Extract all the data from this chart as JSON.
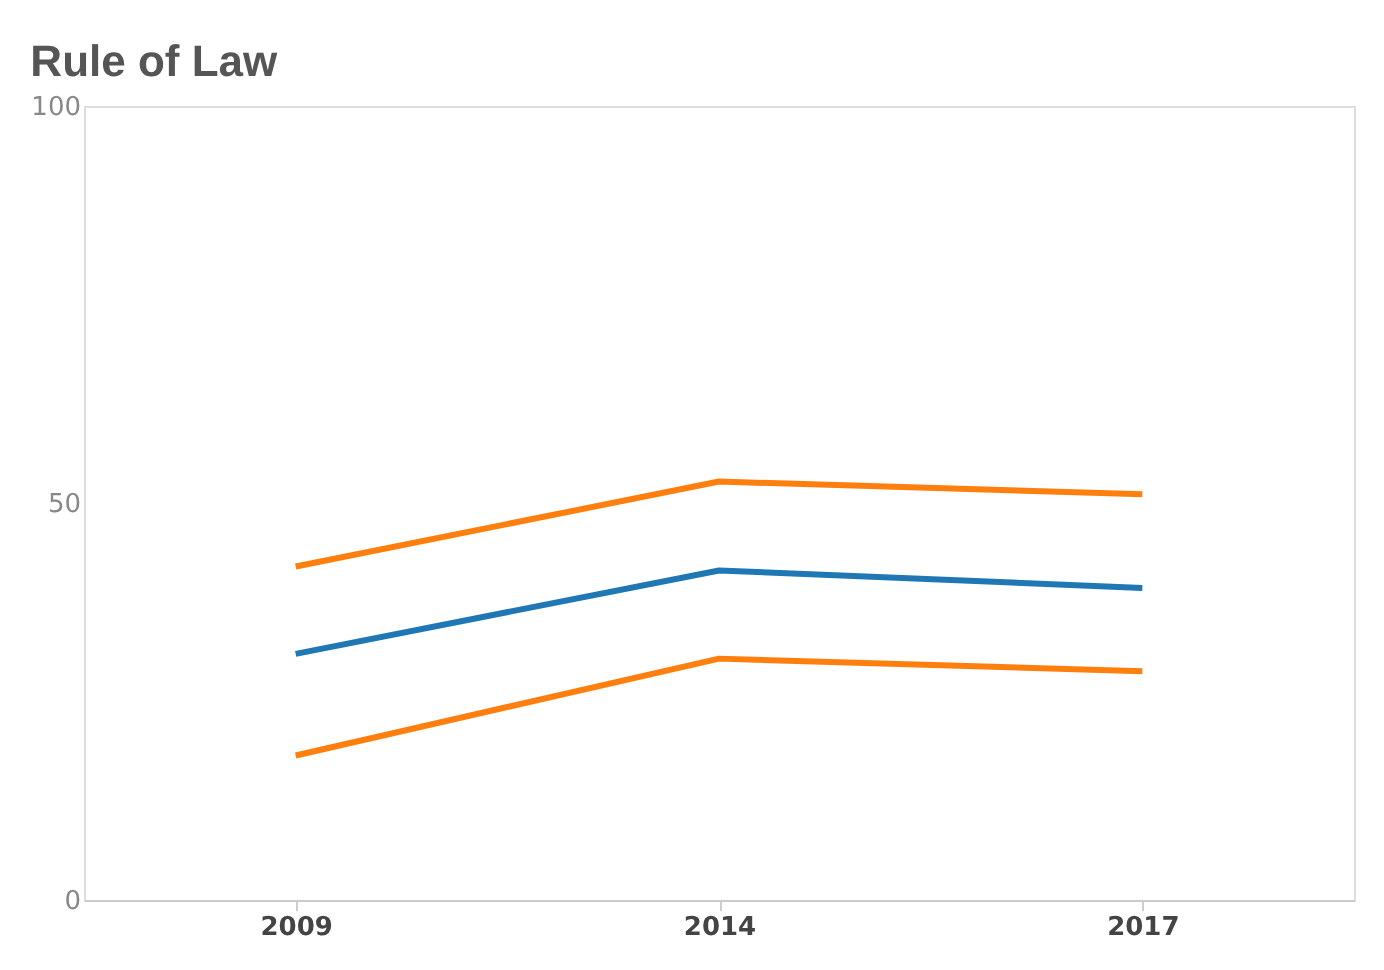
{
  "chart_data": {
    "type": "line",
    "title": "Rule of Law",
    "categories": [
      "2009",
      "2014",
      "2017"
    ],
    "series": [
      {
        "color": "#ff7f0e",
        "values": [
          42,
          52.7,
          51.1
        ]
      },
      {
        "color": "#1f77b4",
        "values": [
          31,
          41.5,
          39.3
        ]
      },
      {
        "color": "#ff7f0e",
        "values": [
          18.2,
          30.4,
          28.8
        ]
      }
    ],
    "ylim": [
      0,
      100
    ],
    "yticks": [
      0,
      50,
      100
    ],
    "marker": "none",
    "line_style": "solid"
  }
}
